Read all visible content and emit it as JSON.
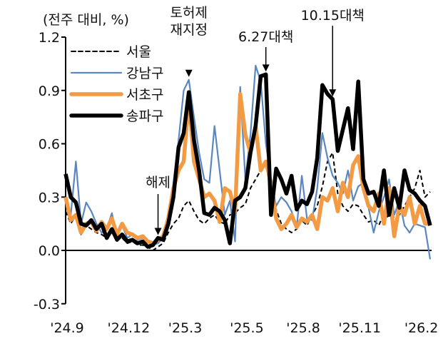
{
  "chart_data": {
    "type": "line",
    "unit_label": "(전주 대비, %)",
    "ylim": [
      -0.3,
      1.2
    ],
    "y_ticks": [
      "1.2",
      "0.9",
      "0.6",
      "0.3",
      "0.0",
      "-0.3"
    ],
    "x_ticks": [
      {
        "label": "'24.9",
        "week": 0
      },
      {
        "label": "'24.12",
        "week": 12
      },
      {
        "label": "'25.3",
        "week": 23
      },
      {
        "label": "'25.5",
        "week": 35
      },
      {
        "label": "'25.8",
        "week": 46
      },
      {
        "label": "'25.11",
        "week": 57
      },
      {
        "label": "'26.2",
        "week": 69
      }
    ],
    "grid": false,
    "legend_position": "top-left",
    "series": [
      {
        "name": "서울",
        "color": "#000000",
        "style": "dashed",
        "values": [
          0.22,
          0.15,
          0.2,
          0.09,
          0.14,
          0.12,
          0.1,
          0.09,
          0.07,
          0.1,
          0.06,
          0.07,
          0.04,
          0.05,
          0.03,
          0.03,
          0.02,
          0.0,
          0.02,
          0.04,
          0.1,
          0.15,
          0.18,
          0.25,
          0.28,
          0.22,
          0.17,
          0.15,
          0.18,
          0.2,
          0.16,
          0.15,
          0.2,
          0.21,
          0.24,
          0.26,
          0.35,
          0.4,
          0.45,
          0.5,
          0.3,
          0.23,
          0.15,
          0.12,
          0.1,
          0.12,
          0.17,
          0.14,
          0.2,
          0.25,
          0.36,
          0.5,
          0.55,
          0.32,
          0.25,
          0.22,
          0.26,
          0.25,
          0.2,
          0.16,
          0.17,
          0.14,
          0.21,
          0.18,
          0.19,
          0.2,
          0.25,
          0.3,
          0.35,
          0.45,
          0.3,
          0.33
        ]
      },
      {
        "name": "강남구",
        "color": "#5b87c0",
        "style": "thin",
        "values": [
          0.3,
          0.2,
          0.5,
          0.15,
          0.27,
          0.22,
          0.15,
          0.1,
          0.12,
          0.21,
          0.08,
          0.14,
          0.07,
          0.09,
          0.06,
          0.07,
          0.05,
          0.03,
          0.04,
          0.07,
          0.14,
          0.38,
          0.62,
          0.9,
          0.96,
          0.75,
          0.55,
          0.4,
          0.38,
          0.7,
          0.45,
          0.2,
          0.28,
          0.05,
          0.92,
          0.4,
          0.65,
          1.04,
          0.95,
          0.6,
          0.4,
          0.25,
          0.3,
          0.27,
          0.22,
          0.13,
          0.42,
          0.18,
          0.17,
          0.35,
          0.66,
          0.52,
          0.42,
          0.38,
          0.32,
          0.45,
          0.28,
          0.36,
          0.38,
          0.24,
          0.1,
          0.22,
          0.3,
          0.4,
          0.2,
          0.28,
          0.14,
          0.1,
          0.15,
          0.14,
          0.13,
          -0.05
        ]
      },
      {
        "name": "서초구",
        "color": "#f39a44",
        "style": "thick",
        "values": [
          0.3,
          0.17,
          0.2,
          0.1,
          0.15,
          0.16,
          0.11,
          0.16,
          0.12,
          0.18,
          0.09,
          0.15,
          0.1,
          0.09,
          0.07,
          0.08,
          0.05,
          0.04,
          0.06,
          0.08,
          0.18,
          0.35,
          0.45,
          0.5,
          0.85,
          0.5,
          0.4,
          0.3,
          0.32,
          0.28,
          0.16,
          0.35,
          0.33,
          0.22,
          0.88,
          0.65,
          0.55,
          0.7,
          0.45,
          0.5,
          0.38,
          0.18,
          0.12,
          0.15,
          0.2,
          0.13,
          0.18,
          0.16,
          0.2,
          0.12,
          0.3,
          0.28,
          0.35,
          0.22,
          0.38,
          0.3,
          0.48,
          0.53,
          0.35,
          0.25,
          0.22,
          0.32,
          0.15,
          0.35,
          0.08,
          0.25,
          0.2,
          0.3,
          0.15,
          0.25,
          0.15,
          0.15
        ]
      },
      {
        "name": "송파구",
        "color": "#000000",
        "style": "thick",
        "values": [
          0.43,
          0.3,
          0.27,
          0.15,
          0.14,
          0.17,
          0.12,
          0.15,
          0.07,
          0.12,
          0.06,
          0.09,
          0.05,
          0.06,
          0.04,
          0.05,
          0.02,
          0.03,
          0.07,
          0.06,
          0.15,
          0.3,
          0.58,
          0.66,
          0.89,
          0.62,
          0.45,
          0.21,
          0.2,
          0.24,
          0.22,
          0.17,
          0.04,
          0.28,
          0.3,
          0.35,
          0.55,
          0.7,
          0.98,
          0.99,
          0.2,
          0.46,
          0.4,
          0.32,
          0.42,
          0.23,
          0.28,
          0.26,
          0.33,
          0.52,
          0.93,
          0.88,
          0.85,
          0.56,
          0.68,
          0.8,
          0.57,
          0.95,
          0.4,
          0.32,
          0.33,
          0.25,
          0.45,
          0.2,
          0.35,
          0.24,
          0.45,
          0.34,
          0.32,
          0.28,
          0.25,
          0.14
        ]
      }
    ],
    "annotations": [
      {
        "lines": [
          "해제"
        ],
        "week": 18
      },
      {
        "lines": [
          "토허제",
          "재지정"
        ],
        "week": 24
      },
      {
        "lines": [
          "6.27대책"
        ],
        "week": 39
      },
      {
        "lines": [
          "10.15대책"
        ],
        "week": 52
      }
    ]
  }
}
